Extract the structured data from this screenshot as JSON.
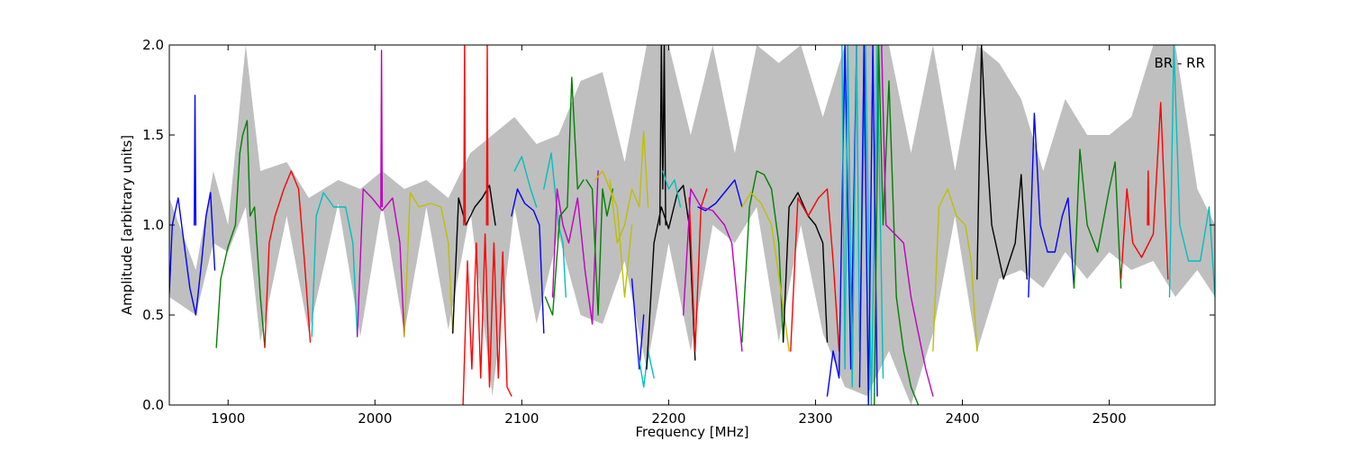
{
  "chart_data": {
    "type": "line",
    "title": "",
    "xlabel": "Frequency [MHz]",
    "ylabel": "Amplitude [arbitrary units]",
    "xlim": [
      1860,
      2572
    ],
    "ylim": [
      0.0,
      2.0
    ],
    "x_ticks": [
      1900,
      2000,
      2100,
      2200,
      2300,
      2400,
      2500
    ],
    "x_tick_labels": [
      "1900",
      "2000",
      "2100",
      "2200",
      "2300",
      "2400",
      "2500"
    ],
    "y_ticks": [
      0.0,
      0.5,
      1.0,
      1.5,
      2.0
    ],
    "y_tick_labels": [
      "0.0",
      "0.5",
      "1.0",
      "1.5",
      "2.0"
    ],
    "grid": false,
    "legend": "none",
    "annotations": [
      {
        "text": "BR - RR",
        "x": 2540,
        "y": 1.9
      }
    ],
    "background_band": {
      "color": "#bfbfbf",
      "x": [
        1860,
        1878,
        1890,
        1900,
        1912,
        1922,
        1940,
        1955,
        1975,
        1990,
        2005,
        2020,
        2035,
        2050,
        2065,
        2080,
        2095,
        2110,
        2125,
        2140,
        2155,
        2170,
        2185,
        2200,
        2215,
        2230,
        2245,
        2260,
        2275,
        2290,
        2305,
        2320,
        2335,
        2350,
        2365,
        2380,
        2395,
        2410,
        2425,
        2440,
        2455,
        2470,
        2485,
        2500,
        2515,
        2530,
        2545,
        2560,
        2572
      ],
      "lower": [
        0.6,
        0.5,
        0.9,
        0.85,
        1.1,
        0.35,
        1.05,
        0.4,
        1.12,
        0.38,
        1.12,
        0.4,
        1.1,
        0.42,
        1.08,
        0.05,
        1.1,
        0.45,
        0.95,
        0.5,
        0.45,
        0.8,
        0.2,
        0.9,
        0.3,
        1.0,
        0.9,
        1.1,
        0.35,
        1.0,
        0.4,
        0.1,
        0.05,
        0.3,
        0.0,
        0.4,
        1.05,
        0.3,
        0.7,
        0.75,
        0.65,
        0.85,
        0.7,
        0.85,
        0.75,
        0.8,
        0.6,
        0.75,
        0.6
      ],
      "upper": [
        1.15,
        0.75,
        1.3,
        1.0,
        2.0,
        1.3,
        1.35,
        1.15,
        1.25,
        1.2,
        1.3,
        1.2,
        1.25,
        1.15,
        1.4,
        1.5,
        1.6,
        1.45,
        1.5,
        1.8,
        1.85,
        1.35,
        2.0,
        2.0,
        1.5,
        2.0,
        1.4,
        2.0,
        1.9,
        2.0,
        1.6,
        2.0,
        2.0,
        2.0,
        1.4,
        2.0,
        1.3,
        2.0,
        1.9,
        1.7,
        1.3,
        1.7,
        1.5,
        1.5,
        1.6,
        2.0,
        2.0,
        1.2,
        1.0
      ]
    },
    "series": [
      {
        "color": "#0000ff",
        "x": [
          1860,
          1862,
          1866,
          1870,
          1874,
          1878,
          1882,
          1885,
          1888,
          1891
        ],
        "y": [
          0.62,
          1.0,
          1.15,
          0.9,
          0.65,
          0.5,
          0.8,
          1.05,
          1.18,
          0.75
        ]
      },
      {
        "color": "#0000ff",
        "x": [
          1877,
          1877.5,
          1878
        ],
        "y": [
          1.0,
          1.72,
          1.0
        ]
      },
      {
        "color": "#008000",
        "x": [
          1892,
          1895,
          1900,
          1905,
          1908,
          1910,
          1913,
          1915,
          1918,
          1922,
          1925
        ],
        "y": [
          0.32,
          0.7,
          0.88,
          1.0,
          1.4,
          1.5,
          1.58,
          1.05,
          1.1,
          0.6,
          0.32
        ]
      },
      {
        "color": "#ff0000",
        "x": [
          1925,
          1928,
          1932,
          1938,
          1943,
          1948,
          1952,
          1956
        ],
        "y": [
          0.32,
          0.9,
          1.05,
          1.2,
          1.3,
          1.2,
          0.8,
          0.35
        ]
      },
      {
        "color": "#00bfbf",
        "x": [
          1957,
          1960,
          1965,
          1972,
          1980,
          1985,
          1988
        ],
        "y": [
          0.38,
          1.05,
          1.18,
          1.1,
          1.1,
          0.9,
          0.38
        ]
      },
      {
        "color": "#bf00bf",
        "x": [
          1988,
          1992,
          1998,
          2005,
          2012,
          2017,
          2020
        ],
        "y": [
          0.38,
          1.2,
          1.15,
          1.08,
          1.15,
          0.9,
          0.38
        ]
      },
      {
        "color": "#bf00bf",
        "x": [
          2004,
          2004.5,
          2005
        ],
        "y": [
          1.1,
          1.97,
          1.1
        ]
      },
      {
        "color": "#bfbf00",
        "x": [
          2020,
          2024,
          2030,
          2038,
          2045,
          2050,
          2053
        ],
        "y": [
          0.38,
          1.18,
          1.1,
          1.12,
          1.1,
          0.9,
          0.4
        ]
      },
      {
        "color": "#000000",
        "x": [
          2053,
          2057,
          2062,
          2068,
          2073,
          2078,
          2082
        ],
        "y": [
          0.4,
          1.15,
          1.0,
          1.1,
          1.15,
          1.22,
          1.0
        ]
      },
      {
        "color": "#ff0000",
        "x": [
          2060,
          2063,
          2066,
          2069,
          2072,
          2075,
          2078,
          2081,
          2084,
          2087,
          2090,
          2093
        ],
        "y": [
          0.0,
          0.8,
          0.2,
          0.9,
          0.15,
          0.95,
          0.1,
          0.9,
          0.15,
          0.85,
          0.1,
          0.05
        ]
      },
      {
        "color": "#ff0000",
        "x": [
          2060.5,
          2061,
          2061.5
        ],
        "y": [
          1.0,
          2.0,
          1.0
        ]
      },
      {
        "color": "#ff0000",
        "x": [
          2076,
          2076.5,
          2077
        ],
        "y": [
          1.0,
          2.0,
          1.0
        ]
      },
      {
        "color": "#0000ff",
        "x": [
          2093,
          2097,
          2102,
          2108,
          2112,
          2115
        ],
        "y": [
          1.05,
          1.2,
          1.12,
          1.08,
          1.0,
          0.4
        ]
      },
      {
        "color": "#00bfbf",
        "x": [
          2095,
          2100,
          2106,
          2110
        ],
        "y": [
          1.3,
          1.38,
          1.2,
          1.1
        ]
      },
      {
        "color": "#00bfbf",
        "x": [
          2115,
          2120,
          2125,
          2128,
          2130
        ],
        "y": [
          1.2,
          1.4,
          1.0,
          0.9,
          0.6
        ]
      },
      {
        "color": "#008000",
        "x": [
          2116,
          2121,
          2126,
          2131,
          2134,
          2138,
          2142
        ],
        "y": [
          0.6,
          0.5,
          1.05,
          1.1,
          1.82,
          1.2,
          1.25
        ]
      },
      {
        "color": "#bf00bf",
        "x": [
          2121,
          2124,
          2128,
          2132,
          2138,
          2143,
          2148,
          2152
        ],
        "y": [
          0.6,
          1.2,
          1.0,
          0.9,
          1.15,
          0.75,
          0.45,
          1.3
        ]
      },
      {
        "color": "#008000",
        "x": [
          2144,
          2148,
          2152,
          2155,
          2158,
          2162
        ],
        "y": [
          1.25,
          1.2,
          0.5,
          1.2,
          1.05,
          1.2
        ]
      },
      {
        "color": "#bfbf00",
        "x": [
          2150,
          2155,
          2160,
          2165,
          2170,
          2175
        ],
        "y": [
          1.25,
          1.3,
          1.2,
          1.1,
          0.6,
          1.0
        ]
      },
      {
        "color": "#bfbf00",
        "x": [
          2160,
          2165,
          2170,
          2175,
          2180,
          2183,
          2186
        ],
        "y": [
          1.25,
          0.9,
          1.0,
          1.2,
          1.1,
          1.52,
          1.1
        ]
      },
      {
        "color": "#0000ff",
        "x": [
          2175,
          2180,
          2183
        ],
        "y": [
          0.7,
          0.2,
          0.5
        ]
      },
      {
        "color": "#00bfbf",
        "x": [
          2180,
          2183,
          2186,
          2190
        ],
        "y": [
          0.25,
          0.1,
          0.3,
          0.15
        ]
      },
      {
        "color": "#000000",
        "x": [
          2185,
          2190,
          2195,
          2200,
          2206,
          2210,
          2214,
          2218
        ],
        "y": [
          0.2,
          0.9,
          1.1,
          0.98,
          1.18,
          1.22,
          1.0,
          0.25
        ]
      },
      {
        "color": "#000000",
        "x": [
          2194,
          2195,
          2196,
          2197,
          2198
        ],
        "y": [
          1.0,
          2.0,
          1.2,
          2.0,
          1.0
        ]
      },
      {
        "color": "#00bfbf",
        "x": [
          2196,
          2200,
          2204,
          2208
        ],
        "y": [
          1.3,
          1.2,
          1.25,
          1.1
        ]
      },
      {
        "color": "#ff0000",
        "x": [
          2214,
          2218,
          2222,
          2226
        ],
        "y": [
          1.15,
          0.3,
          1.1,
          1.2
        ]
      },
      {
        "color": "#0000ff",
        "x": [
          2220,
          2225,
          2232,
          2240,
          2245,
          2250
        ],
        "y": [
          1.1,
          1.08,
          1.12,
          1.2,
          1.25,
          1.1
        ]
      },
      {
        "color": "#bf00bf",
        "x": [
          2210,
          2215,
          2222,
          2230,
          2238,
          2243,
          2250
        ],
        "y": [
          0.5,
          1.2,
          1.1,
          1.08,
          1.0,
          0.9,
          0.3
        ]
      },
      {
        "color": "#008000",
        "x": [
          2250,
          2255,
          2260,
          2265,
          2270,
          2275,
          2278
        ],
        "y": [
          0.35,
          1.1,
          1.3,
          1.28,
          1.2,
          0.9,
          0.35
        ]
      },
      {
        "color": "#bfbf00",
        "x": [
          2250,
          2256,
          2263,
          2270,
          2277,
          2282
        ],
        "y": [
          1.1,
          1.18,
          1.12,
          1.0,
          0.6,
          0.3
        ]
      },
      {
        "color": "#000000",
        "x": [
          2278,
          2282,
          2288,
          2295,
          2300,
          2305,
          2308
        ],
        "y": [
          0.35,
          1.1,
          1.18,
          1.05,
          1.0,
          0.9,
          0.35
        ]
      },
      {
        "color": "#ff0000",
        "x": [
          2283,
          2288,
          2295,
          2302,
          2308,
          2312,
          2316
        ],
        "y": [
          0.3,
          1.15,
          1.05,
          1.15,
          1.2,
          0.8,
          0.3
        ]
      },
      {
        "color": "#0000ff",
        "x": [
          2308,
          2312,
          2316,
          2320,
          2324,
          2328
        ],
        "y": [
          0.05,
          0.3,
          0.15,
          2.0,
          0.2,
          2.0
        ]
      },
      {
        "color": "#00bfbf",
        "x": [
          2318,
          2320,
          2322,
          2325,
          2328,
          2330,
          2334,
          2338,
          2342,
          2346
        ],
        "y": [
          2.0,
          0.2,
          2.0,
          0.1,
          2.0,
          0.3,
          2.0,
          0.0,
          2.0,
          0.15
        ]
      },
      {
        "color": "#0000ff",
        "x": [
          2330,
          2333,
          2336,
          2339,
          2342
        ],
        "y": [
          0.1,
          2.0,
          0.0,
          2.0,
          0.05
        ]
      },
      {
        "color": "#008000",
        "x": [
          2340,
          2343,
          2346,
          2350,
          2355,
          2360,
          2365,
          2370
        ],
        "y": [
          0.0,
          2.0,
          1.0,
          1.8,
          0.6,
          0.3,
          0.1,
          0.0
        ]
      },
      {
        "color": "#bf00bf",
        "x": [
          2345,
          2348,
          2360,
          2365,
          2370,
          2375,
          2380
        ],
        "y": [
          2.0,
          1.0,
          0.9,
          0.6,
          0.4,
          0.2,
          0.05
        ]
      },
      {
        "color": "#bfbf00",
        "x": [
          2380,
          2384,
          2390,
          2396,
          2402,
          2406,
          2410
        ],
        "y": [
          0.3,
          1.1,
          1.2,
          1.05,
          1.0,
          0.8,
          0.3
        ]
      },
      {
        "color": "#000000",
        "x": [
          2410,
          2413,
          2416,
          2420,
          2428,
          2436,
          2440,
          2444
        ],
        "y": [
          0.7,
          2.0,
          1.5,
          1.0,
          0.7,
          0.9,
          1.28,
          0.7
        ]
      },
      {
        "color": "#0000ff",
        "x": [
          2445,
          2449,
          2453,
          2458,
          2463,
          2468,
          2472,
          2476
        ],
        "y": [
          0.6,
          1.62,
          1.0,
          0.85,
          0.85,
          1.05,
          1.15,
          0.65
        ]
      },
      {
        "color": "#008000",
        "x": [
          2476,
          2480,
          2485,
          2492,
          2500,
          2504,
          2508
        ],
        "y": [
          0.65,
          1.42,
          1.0,
          0.85,
          1.2,
          1.35,
          0.65
        ]
      },
      {
        "color": "#ff0000",
        "x": [
          2508,
          2512,
          2516,
          2522,
          2530,
          2535,
          2540
        ],
        "y": [
          0.7,
          1.2,
          0.9,
          0.82,
          0.95,
          1.68,
          0.7
        ]
      },
      {
        "color": "#ff0000",
        "x": [
          2526,
          2526.5,
          2527
        ],
        "y": [
          1.0,
          1.3,
          1.0
        ]
      },
      {
        "color": "#00bfbf",
        "x": [
          2541,
          2544,
          2548,
          2554,
          2562,
          2568,
          2572
        ],
        "y": [
          0.6,
          2.0,
          1.0,
          0.8,
          0.8,
          1.1,
          0.6
        ]
      }
    ]
  }
}
